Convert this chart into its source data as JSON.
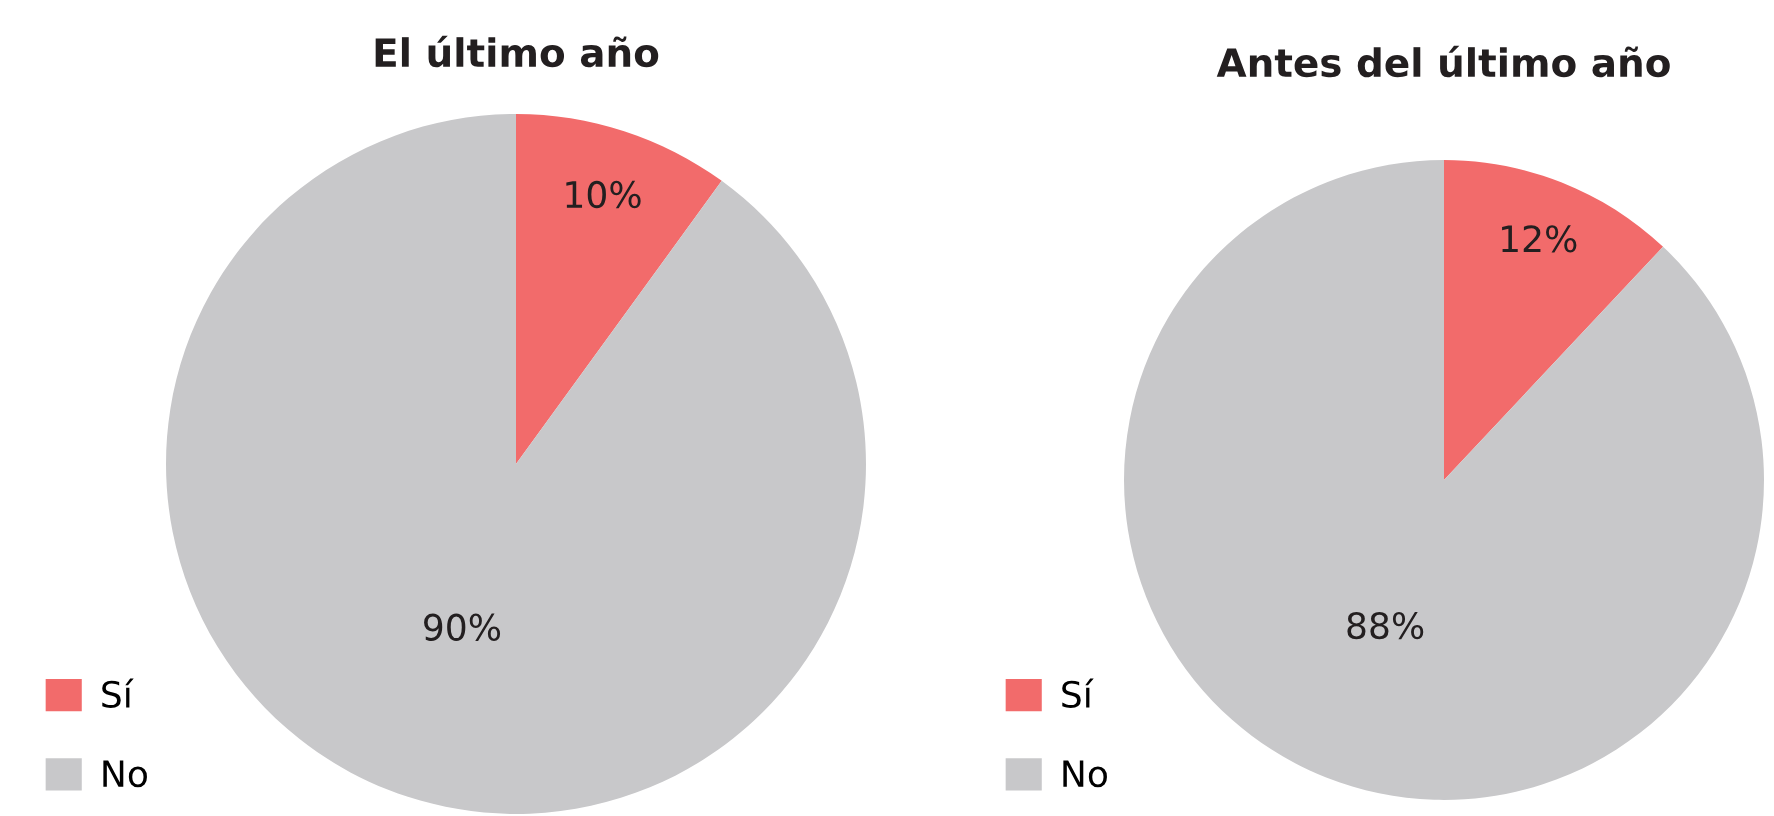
{
  "chart_data": [
    {
      "type": "pie",
      "title": "El último año",
      "categories": [
        "Sí",
        "No"
      ],
      "values": [
        10,
        90
      ],
      "colors": [
        "#f26b6b",
        "#c8c8ca"
      ],
      "value_labels": [
        "10%",
        "90%"
      ],
      "legend": "bottom left"
    },
    {
      "type": "pie",
      "title": "Antes del último año",
      "categories": [
        "Sí",
        "No"
      ],
      "values": [
        12,
        88
      ],
      "colors": [
        "#f26b6b",
        "#c8c8ca"
      ],
      "value_labels": [
        "12%",
        "88%"
      ],
      "legend": "bottom left"
    }
  ]
}
